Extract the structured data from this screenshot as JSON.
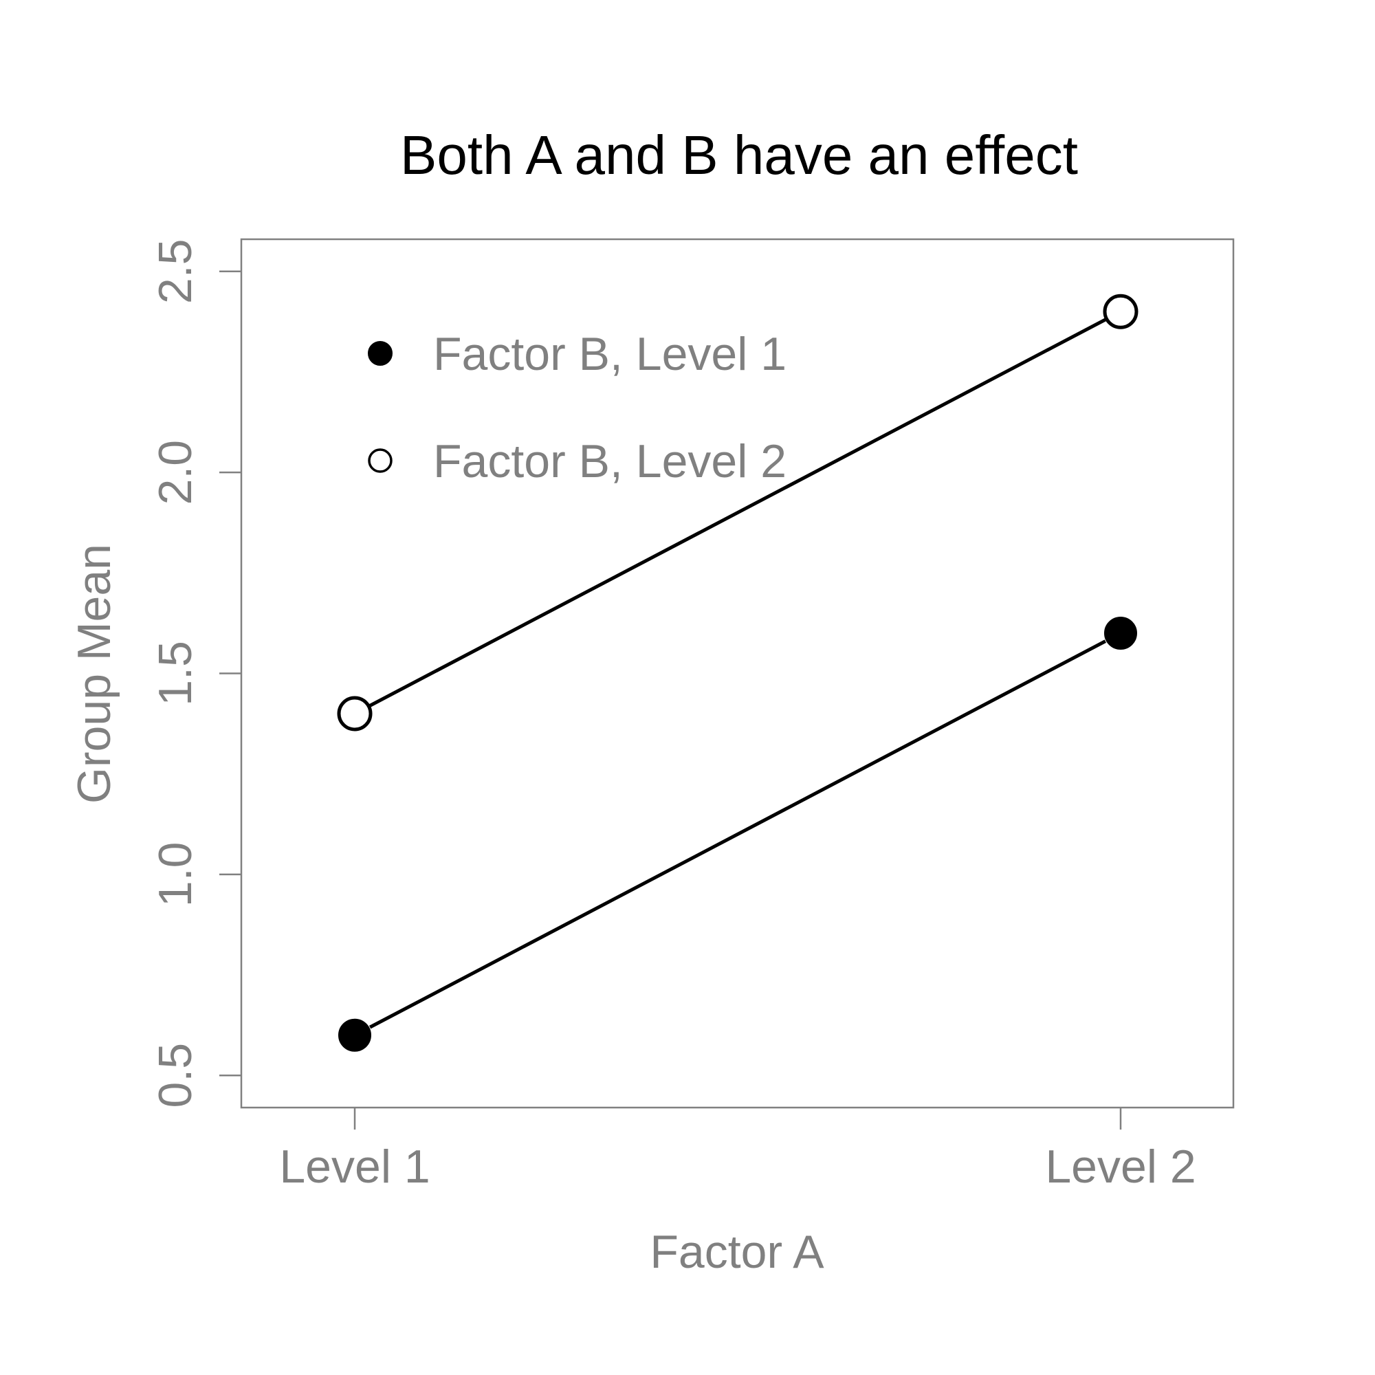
{
  "chart_data": {
    "type": "line",
    "title": "Both A and B have an effect",
    "xlabel": "Factor A",
    "ylabel": "Group Mean",
    "categories": [
      "Level 1",
      "Level 2"
    ],
    "yticks": [
      "0.5",
      "1.0",
      "1.5",
      "2.0",
      "2.5"
    ],
    "ylim": [
      0.42,
      2.58
    ],
    "grid": false,
    "legend_position": "top-left",
    "series": [
      {
        "name": "Factor B, Level 1",
        "values": [
          0.6,
          1.6
        ],
        "marker": "filled-circle"
      },
      {
        "name": "Factor B, Level 2",
        "values": [
          1.4,
          2.4
        ],
        "marker": "open-circle"
      }
    ],
    "colors": {
      "axis": "#808080",
      "text_muted": "#808080",
      "line": "#000000",
      "title": "#000000"
    }
  }
}
